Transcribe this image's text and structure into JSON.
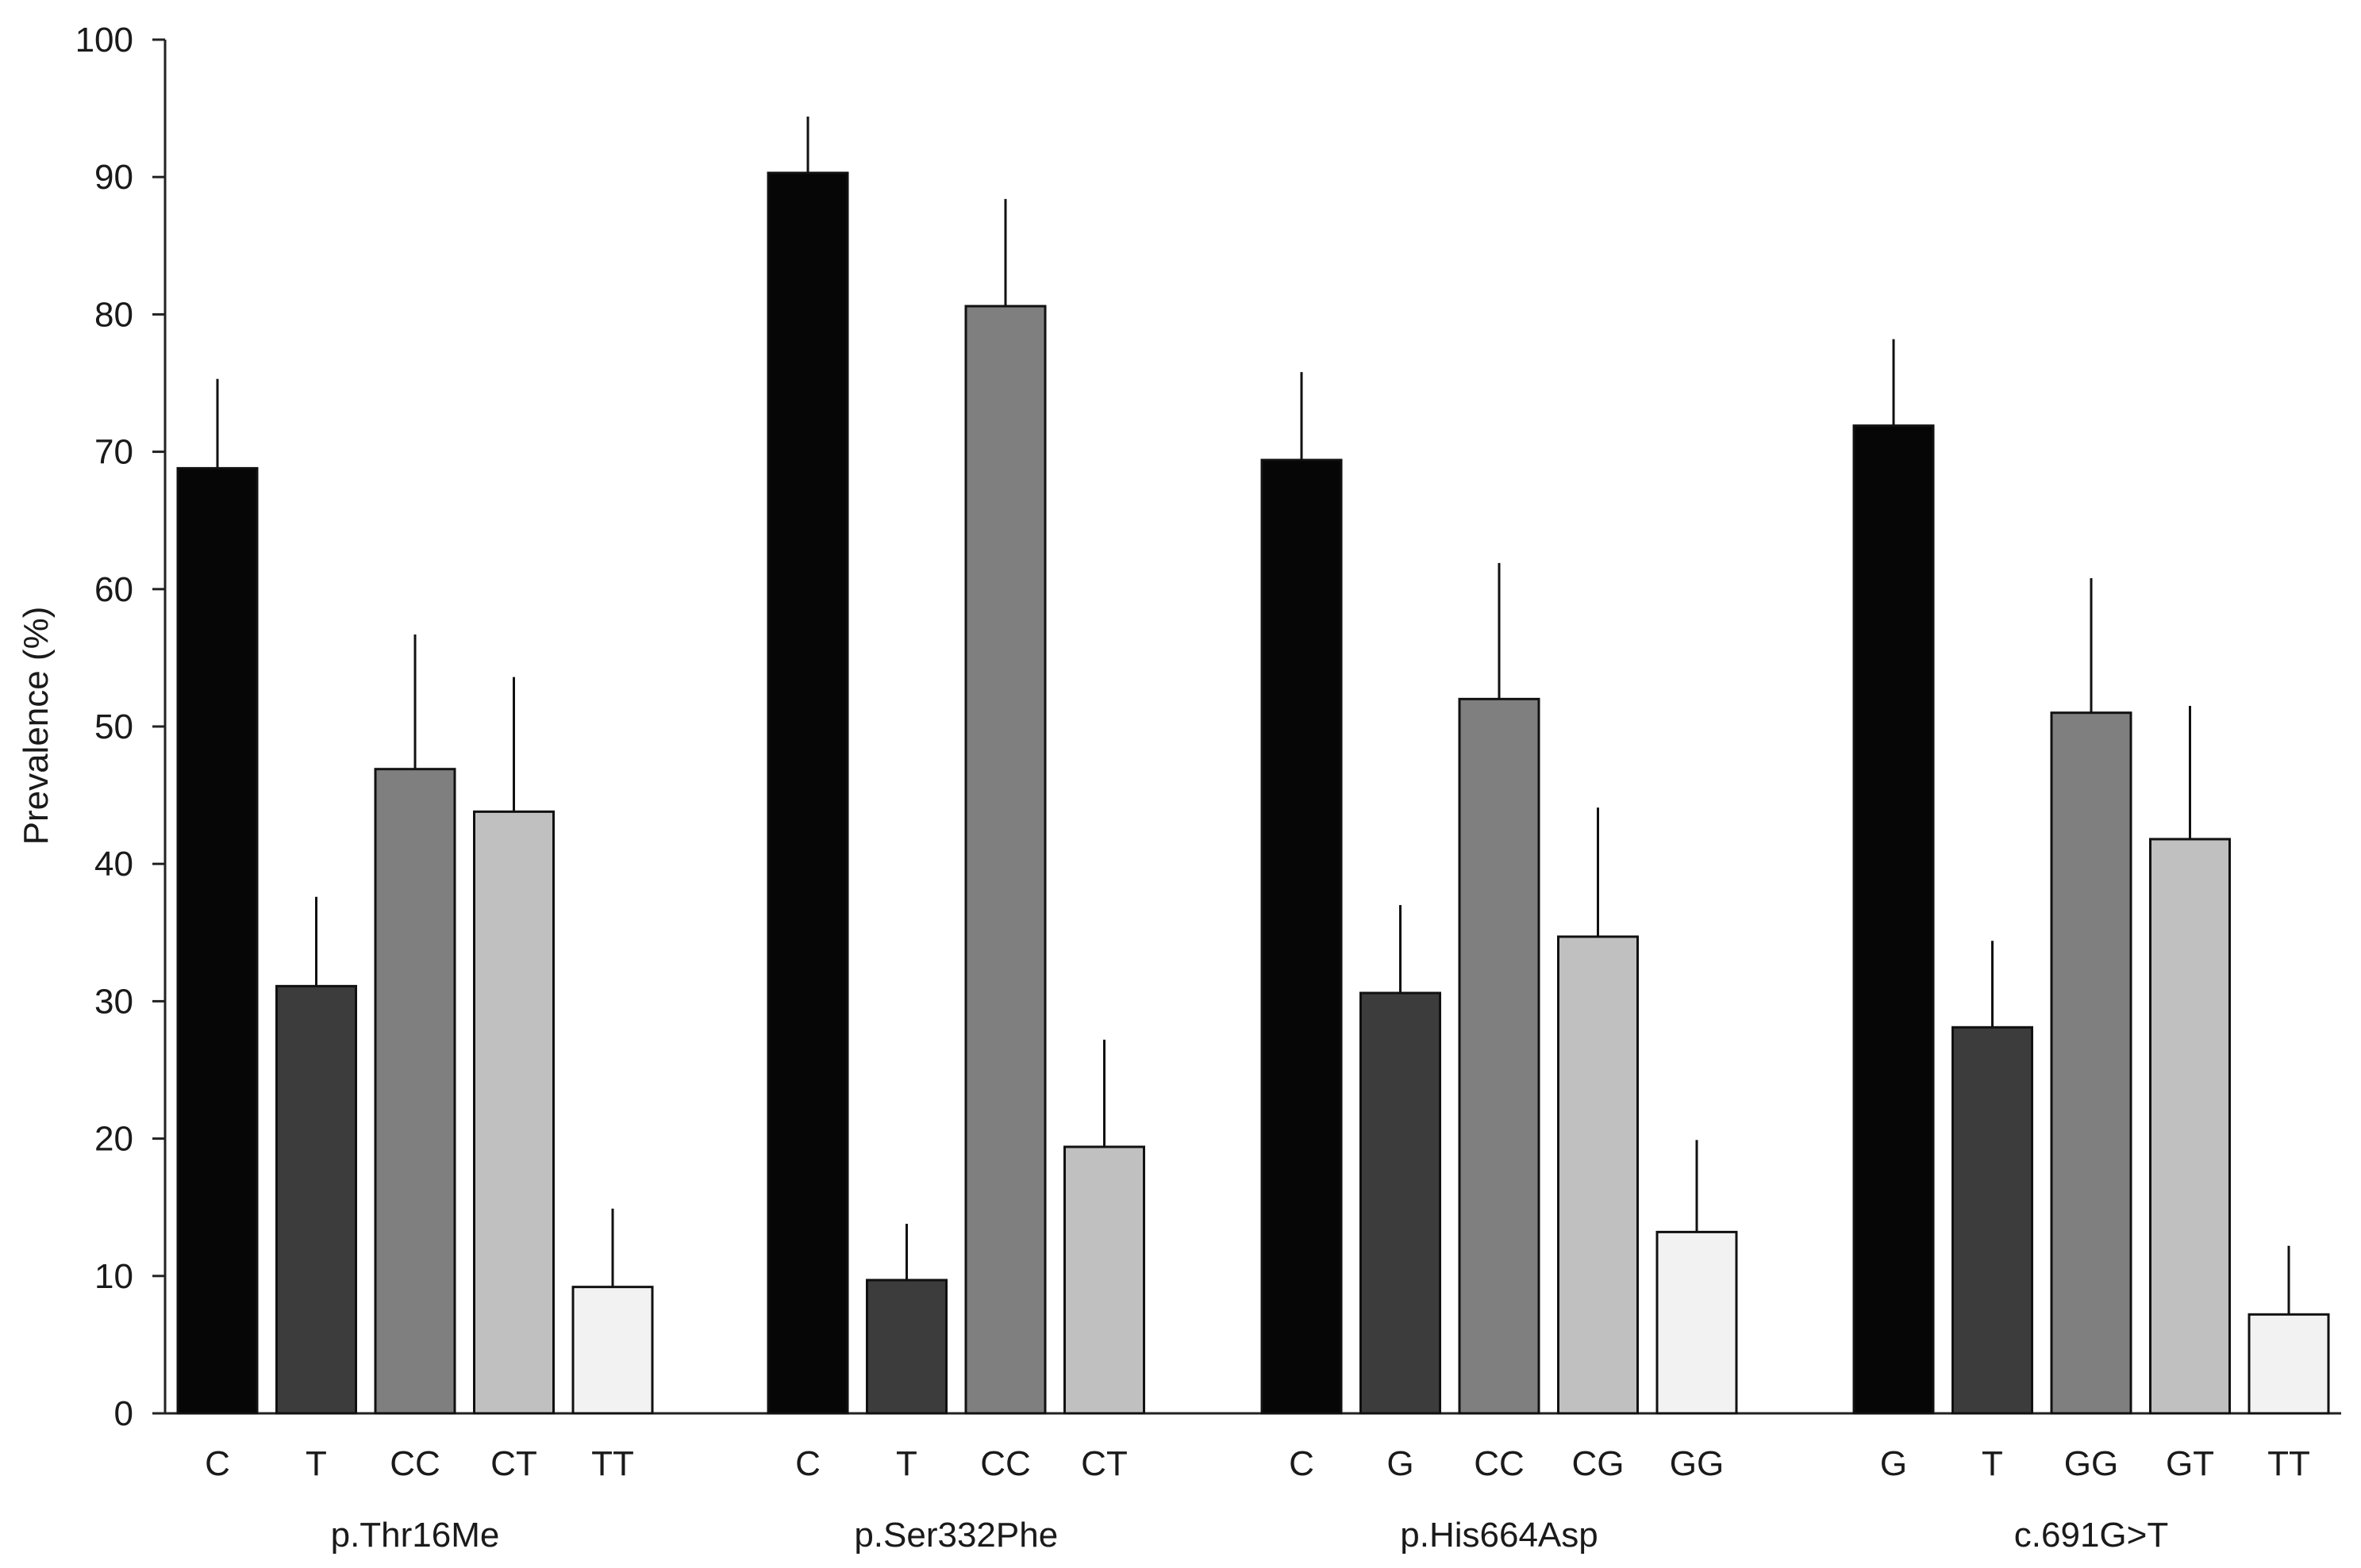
{
  "chart_data": {
    "type": "bar",
    "title": "",
    "xlabel": "",
    "ylabel": "Prevalence (%)",
    "ylim": [
      0,
      100
    ],
    "yticks": [
      0,
      10,
      20,
      30,
      40,
      50,
      60,
      70,
      80,
      90,
      100
    ],
    "grid": false,
    "legend": "none",
    "colors": {
      "C": "#060606",
      "G_major": "#060606",
      "shade_black": "#060606",
      "shade_dark": "#3c3c3c",
      "shade_mid": "#7f7f7f",
      "shade_light": "#c0c0c0",
      "shade_white": "#f2f2f2"
    },
    "groups": [
      {
        "name": "p.Thr16Me",
        "bars": [
          {
            "label": "C",
            "value": 68.8,
            "error": 6.5,
            "shade": "#060606"
          },
          {
            "label": "T",
            "value": 31.1,
            "error": 6.5,
            "shade": "#3c3c3c"
          },
          {
            "label": "CC",
            "value": 46.9,
            "error": 9.8,
            "shade": "#7f7f7f"
          },
          {
            "label": "CT",
            "value": 43.8,
            "error": 9.8,
            "shade": "#c0c0c0"
          },
          {
            "label": "TT",
            "value": 9.2,
            "error": 5.7,
            "shade": "#f2f2f2"
          }
        ]
      },
      {
        "name": "p.Ser332Phe",
        "bars": [
          {
            "label": "C",
            "value": 90.3,
            "error": 4.1,
            "shade": "#060606"
          },
          {
            "label": "T",
            "value": 9.7,
            "error": 4.1,
            "shade": "#3c3c3c"
          },
          {
            "label": "CC",
            "value": 80.6,
            "error": 7.8,
            "shade": "#7f7f7f"
          },
          {
            "label": "CT",
            "value": 19.4,
            "error": 7.8,
            "shade": "#c0c0c0"
          }
        ]
      },
      {
        "name": "p.His664Asp",
        "bars": [
          {
            "label": "C",
            "value": 69.4,
            "error": 6.4,
            "shade": "#060606"
          },
          {
            "label": "G",
            "value": 30.6,
            "error": 6.4,
            "shade": "#3c3c3c"
          },
          {
            "label": "CC",
            "value": 52.0,
            "error": 9.9,
            "shade": "#7f7f7f"
          },
          {
            "label": "CG",
            "value": 34.7,
            "error": 9.4,
            "shade": "#c0c0c0"
          },
          {
            "label": "GG",
            "value": 13.2,
            "error": 6.7,
            "shade": "#f2f2f2"
          }
        ]
      },
      {
        "name": "c.691G>T",
        "bars": [
          {
            "label": "G",
            "value": 71.9,
            "error": 6.3,
            "shade": "#060606"
          },
          {
            "label": "T",
            "value": 28.1,
            "error": 6.3,
            "shade": "#3c3c3c"
          },
          {
            "label": "GG",
            "value": 51.0,
            "error": 9.8,
            "shade": "#7f7f7f"
          },
          {
            "label": "GT",
            "value": 41.8,
            "error": 9.7,
            "shade": "#c0c0c0"
          },
          {
            "label": "TT",
            "value": 7.2,
            "error": 5.0,
            "shade": "#f2f2f2"
          }
        ]
      }
    ]
  }
}
